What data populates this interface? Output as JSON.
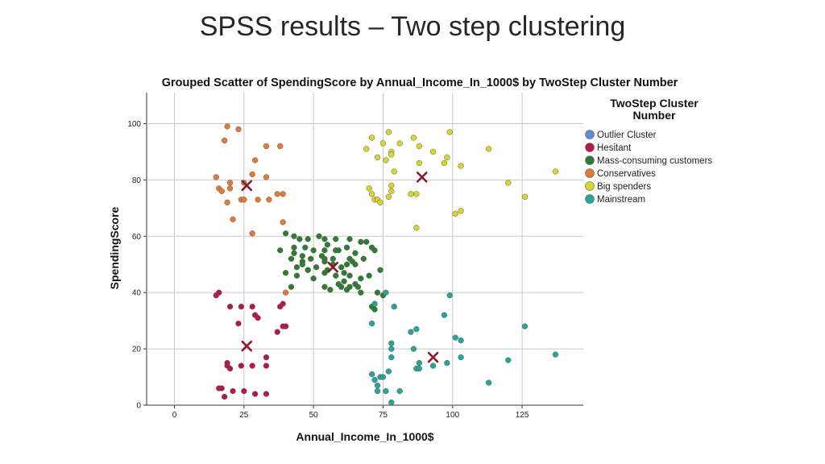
{
  "slide": {
    "title": "SPSS results – Two step clustering"
  },
  "chart_data": {
    "type": "scatter",
    "title": "Grouped Scatter of SpendingScore by Annual_Income_In_1000$ by TwoStep Cluster Number",
    "xlabel": "Annual_Income_In_1000$",
    "ylabel": "SpendingScore",
    "xlim": [
      -10,
      147
    ],
    "ylim": [
      0,
      111
    ],
    "xticks": [
      0,
      25,
      50,
      75,
      100,
      125
    ],
    "yticks": [
      0,
      20,
      40,
      60,
      80,
      100
    ],
    "grid": true,
    "legend": {
      "title_line1": "TwoStep Cluster",
      "title_line2": "Number",
      "placement": "right"
    },
    "series": [
      {
        "name": "Outlier Cluster",
        "color": "#5b8ed6",
        "x": [],
        "y": []
      },
      {
        "name": "Hesitant",
        "color": "#b5174a",
        "x": [
          15,
          16,
          16,
          17,
          18,
          19,
          19,
          20,
          20,
          21,
          23,
          24,
          24,
          25,
          28,
          28,
          29,
          29,
          30,
          33,
          33,
          33,
          37,
          38,
          39,
          39,
          40
        ],
        "y": [
          39,
          6,
          40,
          6,
          3,
          14,
          15,
          35,
          13,
          5,
          29,
          35,
          14,
          5,
          35,
          14,
          32,
          4,
          31,
          17,
          14,
          4,
          26,
          35,
          28,
          36,
          28
        ]
      },
      {
        "name": "Mass-consuming customers",
        "color": "#2e7d32",
        "x": [
          38,
          40,
          42,
          42,
          43,
          43,
          44,
          45,
          46,
          46,
          47,
          48,
          48,
          49,
          50,
          52,
          53,
          54,
          54,
          54,
          54,
          54,
          54,
          55,
          56,
          57,
          57,
          58,
          58,
          59,
          59,
          60,
          60,
          61,
          62,
          62,
          62,
          63,
          63,
          63,
          64,
          65,
          65,
          67,
          67,
          69,
          70,
          71,
          72,
          40,
          43,
          44,
          46,
          48,
          50,
          51,
          55,
          58,
          61,
          63,
          65,
          66,
          67,
          68,
          71,
          72,
          73,
          74,
          75
        ],
        "y": [
          55,
          47,
          52,
          42,
          60,
          54,
          46,
          59,
          51,
          50,
          56,
          59,
          48,
          52,
          55,
          60,
          53,
          47,
          55,
          52,
          59,
          51,
          42,
          48,
          41,
          52,
          50,
          46,
          59,
          43,
          55,
          49,
          42,
          47,
          56,
          41,
          50,
          52,
          59,
          42,
          51,
          54,
          43,
          40,
          58,
          58,
          46,
          56,
          55,
          61,
          56,
          49,
          53,
          48,
          45,
          49,
          57,
          55,
          44,
          46,
          50,
          42,
          45,
          52,
          35,
          34,
          40,
          48,
          39
        ]
      },
      {
        "name": "Conservatives",
        "color": "#e07b39",
        "x": [
          15,
          16,
          17,
          18,
          19,
          19,
          20,
          20,
          21,
          23,
          24,
          25,
          25,
          28,
          28,
          29,
          30,
          33,
          33,
          34,
          37,
          38,
          39,
          39,
          40
        ],
        "y": [
          81,
          77,
          76,
          94,
          99,
          72,
          77,
          79,
          66,
          98,
          73,
          73,
          79,
          61,
          82,
          87,
          73,
          92,
          81,
          73,
          75,
          92,
          65,
          75,
          40
        ]
      },
      {
        "name": "Big spenders",
        "color": "#d6d62b",
        "x": [
          69,
          70,
          71,
          71,
          72,
          73,
          73,
          74,
          75,
          76,
          77,
          77,
          78,
          78,
          78,
          78,
          79,
          81,
          85,
          86,
          87,
          87,
          88,
          88,
          93,
          97,
          98,
          99,
          101,
          103,
          103,
          113,
          120,
          126,
          137
        ],
        "y": [
          91,
          77,
          95,
          75,
          73,
          88,
          73,
          72,
          93,
          87,
          97,
          74,
          90,
          76,
          89,
          78,
          83,
          93,
          75,
          95,
          63,
          75,
          92,
          86,
          90,
          86,
          88,
          97,
          68,
          85,
          69,
          91,
          79,
          74,
          83
        ]
      },
      {
        "name": "Mainstream",
        "color": "#26a69a",
        "x": [
          71,
          71,
          72,
          73,
          73,
          74,
          75,
          76,
          77,
          78,
          78,
          78,
          78,
          79,
          81,
          85,
          86,
          87,
          87,
          88,
          88,
          93,
          97,
          98,
          99,
          101,
          103,
          103,
          113,
          120,
          126,
          137,
          72,
          76
        ],
        "y": [
          29,
          11,
          9,
          5,
          7,
          10,
          10,
          5,
          12,
          1,
          17,
          20,
          22,
          35,
          5,
          26,
          20,
          27,
          13,
          13,
          15,
          14,
          32,
          15,
          39,
          24,
          17,
          23,
          8,
          16,
          28,
          18,
          36,
          40
        ]
      }
    ],
    "centroids": [
      {
        "cluster": "Hesitant",
        "x": 26,
        "y": 21
      },
      {
        "cluster": "Mass-consuming customers",
        "x": 57,
        "y": 49
      },
      {
        "cluster": "Conservatives",
        "x": 26,
        "y": 78
      },
      {
        "cluster": "Big spenders",
        "x": 89,
        "y": 81
      },
      {
        "cluster": "Mainstream",
        "x": 93,
        "y": 17
      }
    ],
    "centroid_color": "#8b1a2b"
  }
}
